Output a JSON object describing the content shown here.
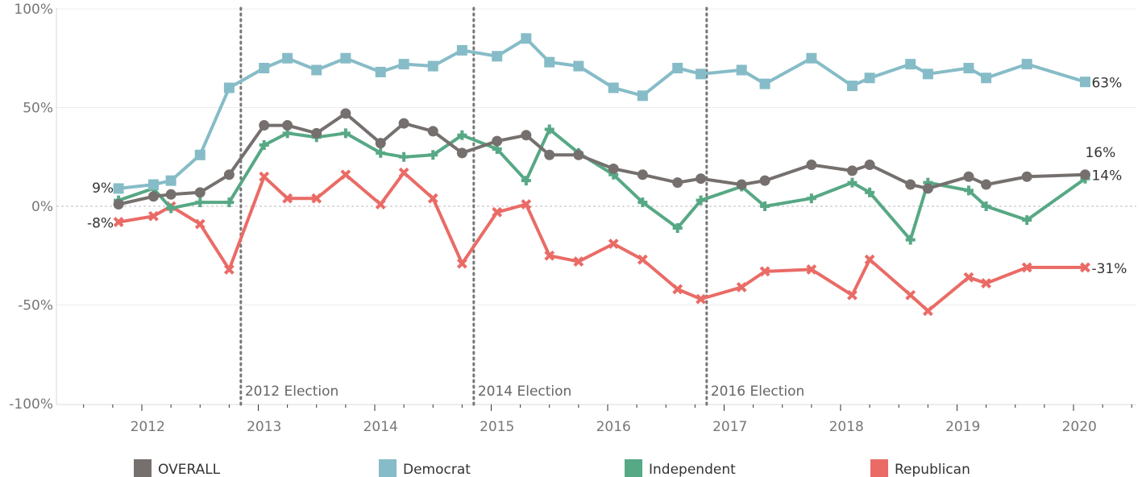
{
  "chart_data": {
    "type": "line",
    "y_unit": "%",
    "ylim": [
      -100,
      100
    ],
    "y_ticks": [
      100,
      50,
      0,
      -50,
      -100
    ],
    "y_tick_labels": [
      "100%",
      "50%",
      "0%",
      "-50%",
      "-100%"
    ],
    "x_range": [
      2011.3,
      2020.55
    ],
    "x_ticks": [
      2012,
      2013,
      2014,
      2015,
      2016,
      2017,
      2018,
      2019,
      2020
    ],
    "x_tick_labels": [
      "2012",
      "2013",
      "2014",
      "2015",
      "2016",
      "2017",
      "2018",
      "2019",
      "2020"
    ],
    "grid": {
      "horizontal": true,
      "vertical": false
    },
    "zero_line": "dashed",
    "legend_position": "bottom",
    "x": [
      2011.8,
      2012.1,
      2012.25,
      2012.5,
      2012.75,
      2013.05,
      2013.25,
      2013.5,
      2013.75,
      2014.05,
      2014.25,
      2014.5,
      2014.75,
      2015.05,
      2015.3,
      2015.5,
      2015.75,
      2016.05,
      2016.3,
      2016.6,
      2016.8,
      2017.15,
      2017.35,
      2017.75,
      2018.1,
      2018.25,
      2018.6,
      2018.75,
      2019.1,
      2019.25,
      2019.6,
      2020.1
    ],
    "series": [
      {
        "name": "OVERALL",
        "color": "#75706e",
        "marker": "circle",
        "end_label": "16%",
        "start_label": "",
        "x": [
          2011.8,
          2012.1,
          2012.25,
          2012.5,
          2012.75,
          2013.05,
          2013.25,
          2013.5,
          2013.75,
          2014.05,
          2014.25,
          2014.5,
          2014.75,
          2015.05,
          2015.3,
          2015.5,
          2015.75,
          2016.05,
          2016.3,
          2016.6,
          2016.8,
          2017.15,
          2017.35,
          2017.75,
          2018.1,
          2018.25,
          2018.6,
          2018.75,
          2019.1,
          2019.25,
          2019.6,
          2020.1
        ],
        "values": [
          1,
          5,
          6,
          7,
          16,
          41,
          41,
          37,
          47,
          32,
          42,
          38,
          27,
          33,
          36,
          26,
          26,
          19,
          16,
          12,
          14,
          11,
          13,
          21,
          18,
          21,
          11,
          9,
          15,
          11,
          15,
          16
        ]
      },
      {
        "name": "Democrat",
        "color": "#86bcc7",
        "marker": "square",
        "end_label": "63%",
        "start_label": "9%",
        "x": [
          2011.8,
          2012.1,
          2012.25,
          2012.5,
          2012.75,
          2013.05,
          2013.25,
          2013.5,
          2013.75,
          2014.05,
          2014.25,
          2014.5,
          2014.75,
          2015.05,
          2015.3,
          2015.5,
          2015.75,
          2016.05,
          2016.3,
          2016.6,
          2016.8,
          2017.15,
          2017.35,
          2017.75,
          2018.1,
          2018.25,
          2018.6,
          2018.75,
          2019.1,
          2019.25,
          2019.6,
          2020.1
        ],
        "values": [
          9,
          11,
          13,
          26,
          60,
          70,
          75,
          69,
          75,
          68,
          72,
          71,
          79,
          76,
          85,
          73,
          71,
          60,
          56,
          70,
          67,
          69,
          62,
          75,
          61,
          65,
          72,
          67,
          70,
          65,
          72,
          63
        ]
      },
      {
        "name": "Independent",
        "color": "#57a885",
        "marker": "plus",
        "end_label": "14%",
        "start_label": "",
        "x": [
          2011.8,
          2012.1,
          2012.25,
          2012.5,
          2012.75,
          2013.05,
          2013.25,
          2013.5,
          2013.75,
          2014.05,
          2014.25,
          2014.5,
          2014.75,
          2015.05,
          2015.3,
          2015.5,
          2015.75,
          2016.05,
          2016.3,
          2016.6,
          2016.8,
          2017.15,
          2017.35,
          2017.75,
          2018.1,
          2018.25,
          2018.6,
          2018.75,
          2019.1,
          2019.25,
          2019.6,
          2020.1
        ],
        "values": [
          3,
          9,
          -1,
          2,
          2,
          31,
          37,
          35,
          37,
          27,
          25,
          26,
          36,
          29,
          13,
          39,
          27,
          16,
          2,
          -11,
          3,
          10,
          0,
          4,
          12,
          7,
          -17,
          12,
          8,
          0,
          -7,
          14
        ]
      },
      {
        "name": "Republican",
        "color": "#ea6b66",
        "marker": "x",
        "end_label": "-31%",
        "start_label": "-8%",
        "x": [
          2011.8,
          2012.1,
          2012.25,
          2012.5,
          2012.75,
          2013.05,
          2013.25,
          2013.5,
          2013.75,
          2014.05,
          2014.25,
          2014.5,
          2014.75,
          2015.05,
          2015.3,
          2015.5,
          2015.75,
          2016.05,
          2016.3,
          2016.6,
          2016.8,
          2017.15,
          2017.35,
          2017.75,
          2018.1,
          2018.25,
          2018.6,
          2018.75,
          2019.1,
          2019.25,
          2019.6,
          2020.1
        ],
        "values": [
          -8,
          -5,
          0,
          -9,
          -32,
          15,
          4,
          4,
          16,
          1,
          17,
          4,
          -29,
          -3,
          1,
          -25,
          -28,
          -19,
          -27,
          -42,
          -47,
          -41,
          -33,
          -32,
          -45,
          -27,
          -45,
          -53,
          -36,
          -39,
          -31,
          -31
        ]
      }
    ],
    "annotations": [
      {
        "x": 2012.85,
        "label": "2012 Election",
        "style": "dotted-vertical-line"
      },
      {
        "x": 2014.85,
        "label": "2014 Election",
        "style": "dotted-vertical-line"
      },
      {
        "x": 2016.85,
        "label": "2016 Election",
        "style": "dotted-vertical-line"
      }
    ],
    "legend": [
      {
        "label": "OVERALL",
        "color": "#75706e"
      },
      {
        "label": "Democrat",
        "color": "#86bcc7"
      },
      {
        "label": "Independent",
        "color": "#57a885"
      },
      {
        "label": "Republican",
        "color": "#ea6b66"
      }
    ]
  }
}
